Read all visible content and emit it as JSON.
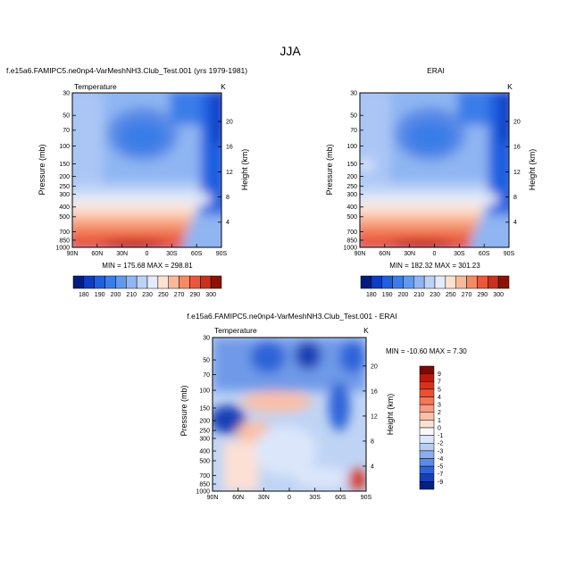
{
  "figure_title": "JJA",
  "chart_data": [
    {
      "type": "heatmap",
      "id": "model",
      "title": "f.e15a6.FAMIPC5.ne0np4-VarMeshNH3.Club_Test.001 (yrs 1979-1981)",
      "field_label": "Temperature",
      "units": "K",
      "xlabel": "",
      "ylabel": "Pressure (mb)",
      "y2label": "Height (km)",
      "x_ticks": [
        "90N",
        "60N",
        "30N",
        "0",
        "30S",
        "60S",
        "90S"
      ],
      "y_ticks": [
        30,
        50,
        70,
        100,
        150,
        200,
        250,
        300,
        400,
        500,
        700,
        850,
        1000
      ],
      "y2_ticks": [
        4,
        8,
        12,
        16,
        20
      ],
      "ylim": [
        1000,
        30
      ],
      "stats": "MIN = 175.68   MAX = 298.81",
      "min": 175.68,
      "max": 298.81
    },
    {
      "type": "heatmap",
      "id": "obs",
      "title": "ERAI",
      "field_label": "",
      "units": "K",
      "xlabel": "",
      "ylabel": "Pressure (mb)",
      "y2label": "Height (km)",
      "x_ticks": [
        "90N",
        "60N",
        "30N",
        "0",
        "30S",
        "60S",
        "90S"
      ],
      "y_ticks": [
        30,
        50,
        70,
        100,
        150,
        200,
        250,
        300,
        400,
        500,
        700,
        850,
        1000
      ],
      "y2_ticks": [
        4,
        8,
        12,
        16,
        20
      ],
      "ylim": [
        1000,
        30
      ],
      "stats": "MIN = 182.32   MAX = 301.23",
      "min": 182.32,
      "max": 301.23
    },
    {
      "type": "heatmap",
      "id": "diff",
      "title": "f.e15a6.FAMIPC5.ne0np4-VarMeshNH3.Club_Test.001 - ERAI",
      "field_label": "Temperature",
      "units": "K",
      "xlabel": "",
      "ylabel": "Pressure (mb)",
      "y2label": "Height (km)",
      "x_ticks": [
        "90N",
        "60N",
        "30N",
        "0",
        "30S",
        "60S",
        "90S"
      ],
      "y_ticks": [
        30,
        50,
        70,
        100,
        150,
        200,
        250,
        300,
        400,
        500,
        700,
        850,
        1000
      ],
      "y2_ticks": [
        4,
        8,
        12,
        16,
        20
      ],
      "ylim": [
        1000,
        30
      ],
      "stats": "MIN = -10.60   MAX =   7.30",
      "min": -10.6,
      "max": 7.3
    }
  ],
  "colorbar_abs": {
    "orientation": "horizontal",
    "labels": [
      "180",
      "190",
      "200",
      "210",
      "230",
      "250",
      "270",
      "290",
      "300"
    ],
    "levels": [
      180,
      190,
      200,
      210,
      220,
      230,
      240,
      250,
      260,
      270,
      280,
      290,
      300
    ],
    "colors": [
      "#041b7f",
      "#0c3cc2",
      "#1f5fe0",
      "#3b7de8",
      "#6199ee",
      "#8fb5f2",
      "#bdd2f6",
      "#e4ecfa",
      "#fde2d2",
      "#f9b899",
      "#f48a64",
      "#e9583c",
      "#c9311e",
      "#8c1208"
    ]
  },
  "colorbar_diff": {
    "orientation": "vertical",
    "labels": [
      "9",
      "7",
      "5",
      "4",
      "3",
      "2",
      "1",
      "0",
      "-1",
      "-2",
      "-3",
      "-4",
      "-5",
      "-7",
      "-9"
    ],
    "colors": [
      "#7a0a05",
      "#b71a0e",
      "#d9321b",
      "#ec5031",
      "#f47656",
      "#f99b80",
      "#fbbfa9",
      "#fde0d4",
      "#f8f8fc",
      "#dbe6fa",
      "#b7cdf4",
      "#8aaeee",
      "#5a8be6",
      "#2e64d8",
      "#1540b4",
      "#052080"
    ]
  }
}
